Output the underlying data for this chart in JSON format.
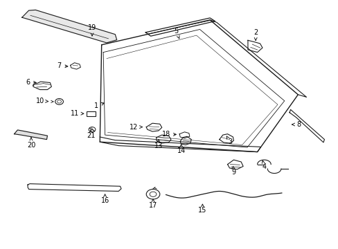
{
  "background_color": "#ffffff",
  "line_color": "#1a1a1a",
  "text_color": "#000000",
  "fig_width": 4.89,
  "fig_height": 3.6,
  "dpi": 100,
  "labels": {
    "1": [
      0.285,
      0.575,
      0.315,
      0.59
    ],
    "2": [
      0.755,
      0.87,
      0.755,
      0.835
    ],
    "3": [
      0.68,
      0.43,
      0.668,
      0.455
    ],
    "4": [
      0.78,
      0.33,
      0.775,
      0.358
    ],
    "5": [
      0.52,
      0.875,
      0.53,
      0.843
    ],
    "6": [
      0.082,
      0.67,
      0.115,
      0.667
    ],
    "7": [
      0.175,
      0.735,
      0.208,
      0.733
    ],
    "8": [
      0.882,
      0.5,
      0.86,
      0.5
    ],
    "9": [
      0.69,
      0.308,
      0.688,
      0.335
    ],
    "10": [
      0.118,
      0.595,
      0.15,
      0.592
    ],
    "11": [
      0.22,
      0.545,
      0.255,
      0.543
    ],
    "12": [
      0.395,
      0.49,
      0.428,
      0.49
    ],
    "13": [
      0.468,
      0.415,
      0.468,
      0.443
    ],
    "14": [
      0.535,
      0.395,
      0.535,
      0.423
    ],
    "15": [
      0.598,
      0.155,
      0.598,
      0.183
    ],
    "16": [
      0.31,
      0.195,
      0.31,
      0.223
    ],
    "17": [
      0.452,
      0.175,
      0.452,
      0.203
    ],
    "18": [
      0.49,
      0.46,
      0.528,
      0.46
    ],
    "19": [
      0.272,
      0.888,
      0.272,
      0.853
    ],
    "20": [
      0.092,
      0.418,
      0.092,
      0.45
    ],
    "21": [
      0.268,
      0.455,
      0.268,
      0.48
    ]
  }
}
